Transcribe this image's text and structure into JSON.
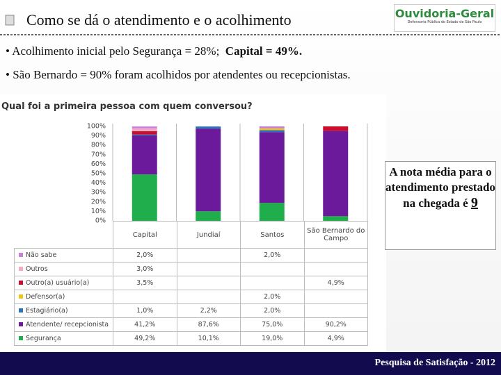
{
  "slide": {
    "title": "Como se dá o atendimento e o acolhimento",
    "logo": "Ouvidoria-Geral",
    "logo_subtitle": "Defensoria Pública do Estado de São Paulo",
    "bullets": [
      "• Acolhimento inicial pelo Segurança = 28%;",
      "Capital = 49%.",
      "• São Bernardo = 90% foram acolhidos por  atendentes ou recepcionistas."
    ],
    "note": "A nota média para o atendimento prestado na chegada é",
    "note_value": "9",
    "footer": "Pesquisa de Satisfação - 2012"
  },
  "chart_data": {
    "type": "stacked_bar",
    "title": "Qual foi a primeira pessoa com quem conversou?",
    "categories": [
      "Capital",
      "Jundiaí",
      "Santos",
      "São Bernardo do Campo"
    ],
    "ylim": [
      0,
      100
    ],
    "yticks": [
      {
        "value": 0,
        "label": "0%"
      },
      {
        "value": 10,
        "label": "10%"
      },
      {
        "value": 20,
        "label": "20%"
      },
      {
        "value": 30,
        "label": "30%"
      },
      {
        "value": 40,
        "label": "40%"
      },
      {
        "value": 50,
        "label": "50%"
      },
      {
        "value": 60,
        "label": "60%"
      },
      {
        "value": 70,
        "label": "70%"
      },
      {
        "value": 80,
        "label": "80%"
      },
      {
        "value": 90,
        "label": "90%"
      },
      {
        "value": 100,
        "label": "100%"
      }
    ],
    "grid": false,
    "series": [
      {
        "name": "Não sabe",
        "color": "#c87fd6",
        "values": [
          2.0,
          null,
          2.0,
          null
        ],
        "value_labels": [
          "2,0%",
          null,
          "2,0%",
          null
        ]
      },
      {
        "name": "Outros",
        "color": "#f6a8c8",
        "values": [
          3.0,
          null,
          null,
          null
        ],
        "value_labels": [
          "3,0%",
          null,
          null,
          null
        ]
      },
      {
        "name": "Outro(a) usuário(a)",
        "color": "#c8102e",
        "values": [
          3.5,
          null,
          null,
          4.9
        ],
        "value_labels": [
          "3,5%",
          null,
          null,
          "4,9%"
        ]
      },
      {
        "name": "Defensor(a)",
        "color": "#f2c21b",
        "values": [
          null,
          null,
          2.0,
          null
        ],
        "value_labels": [
          null,
          null,
          "2,0%",
          null
        ]
      },
      {
        "name": "Estagiário(a)",
        "color": "#2a74b8",
        "values": [
          1.0,
          2.2,
          2.0,
          null
        ],
        "value_labels": [
          "1,0%",
          "2,2%",
          "2,0%",
          null
        ]
      },
      {
        "name": "Atendente/ recepcionista",
        "color": "#6c1a9c",
        "values": [
          41.2,
          87.6,
          75.0,
          90.2
        ],
        "value_labels": [
          "41,2%",
          "87,6%",
          "75,0%",
          "90,2%"
        ]
      },
      {
        "name": "Segurança",
        "color": "#1fae4b",
        "values": [
          49.2,
          10.1,
          19.0,
          4.9
        ],
        "value_labels": [
          "49,2%",
          "10,1%",
          "19,0%",
          "4,9%"
        ]
      }
    ]
  }
}
